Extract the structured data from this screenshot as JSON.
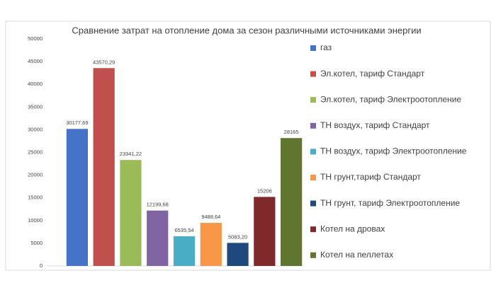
{
  "chart_data": {
    "type": "bar",
    "title": "Сравнение затрат на отопление дома за сезон различными источниками энергии",
    "categories": [
      null
    ],
    "series": [
      {
        "name": "газ",
        "color": "#4472c4",
        "values": [
          30177.69
        ],
        "value_labels": [
          "30177,69"
        ]
      },
      {
        "name": "Эл.котел, тариф Стандарт",
        "color": "#c0504d",
        "values": [
          43570.29
        ],
        "value_labels": [
          "43570,29"
        ]
      },
      {
        "name": "Эл.котел, тариф Электроотопление",
        "color": "#9bbb59",
        "values": [
          23341.22
        ],
        "value_labels": [
          "23341,22"
        ]
      },
      {
        "name": "ТН воздух, тариф Стандарт",
        "color": "#8064a2",
        "values": [
          12199.68
        ],
        "value_labels": [
          "12199,68"
        ]
      },
      {
        "name": "ТН воздух, тариф Электроотопление",
        "color": "#4bacc6",
        "values": [
          6535.54
        ],
        "value_labels": [
          "6535,54"
        ]
      },
      {
        "name": "ТН грунт,тариф Стандарт",
        "color": "#f79646",
        "values": [
          9488.64
        ],
        "value_labels": [
          "9488,64"
        ]
      },
      {
        "name": "ТН грунт, тариф Электроотопление",
        "color": "#1f497d",
        "values": [
          5083.2
        ],
        "value_labels": [
          "5083,20"
        ]
      },
      {
        "name": "Котел на дровах",
        "color": "#7f2a2a",
        "values": [
          15206
        ]
      },
      {
        "name": "Котел на пеллетах",
        "color": "#5f7530",
        "values": [
          28165
        ]
      }
    ],
    "ylim": [
      0,
      50000
    ],
    "yticks": [
      0,
      5000,
      10000,
      15000,
      20000,
      25000,
      30000,
      35000,
      40000,
      45000,
      50000
    ],
    "grid": false,
    "legend": "right"
  }
}
